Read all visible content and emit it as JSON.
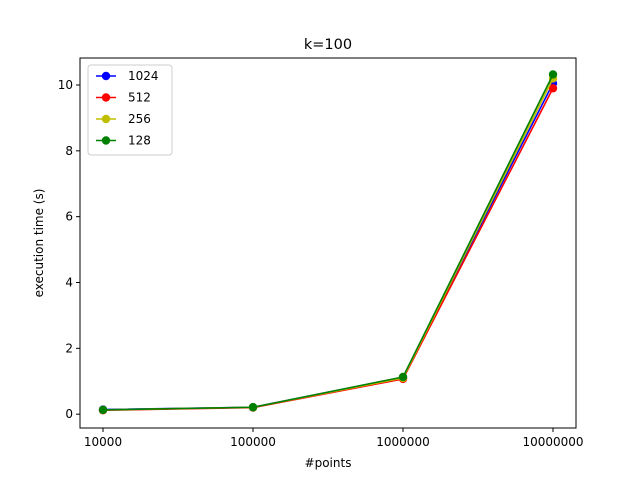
{
  "chart_data": {
    "type": "line",
    "title": "k=100",
    "xlabel": "#points",
    "ylabel": "execution time (s)",
    "x_ticks": [
      "10000",
      "100000",
      "1000000",
      "10000000"
    ],
    "y_ticks": [
      "0",
      "2",
      "4",
      "6",
      "8",
      "10"
    ],
    "ylim": [
      -0.42,
      10.82
    ],
    "grid": false,
    "legend_position": "top-left",
    "series": [
      {
        "name": "1024",
        "color": "#0000ff",
        "values": [
          0.14,
          0.21,
          1.12,
          10.05
        ]
      },
      {
        "name": "512",
        "color": "#ff0000",
        "values": [
          0.12,
          0.2,
          1.07,
          9.9
        ]
      },
      {
        "name": "256",
        "color": "#bfbf00",
        "values": [
          0.13,
          0.21,
          1.1,
          10.2
        ]
      },
      {
        "name": "128",
        "color": "#008000",
        "values": [
          0.13,
          0.21,
          1.13,
          10.32
        ]
      }
    ]
  }
}
